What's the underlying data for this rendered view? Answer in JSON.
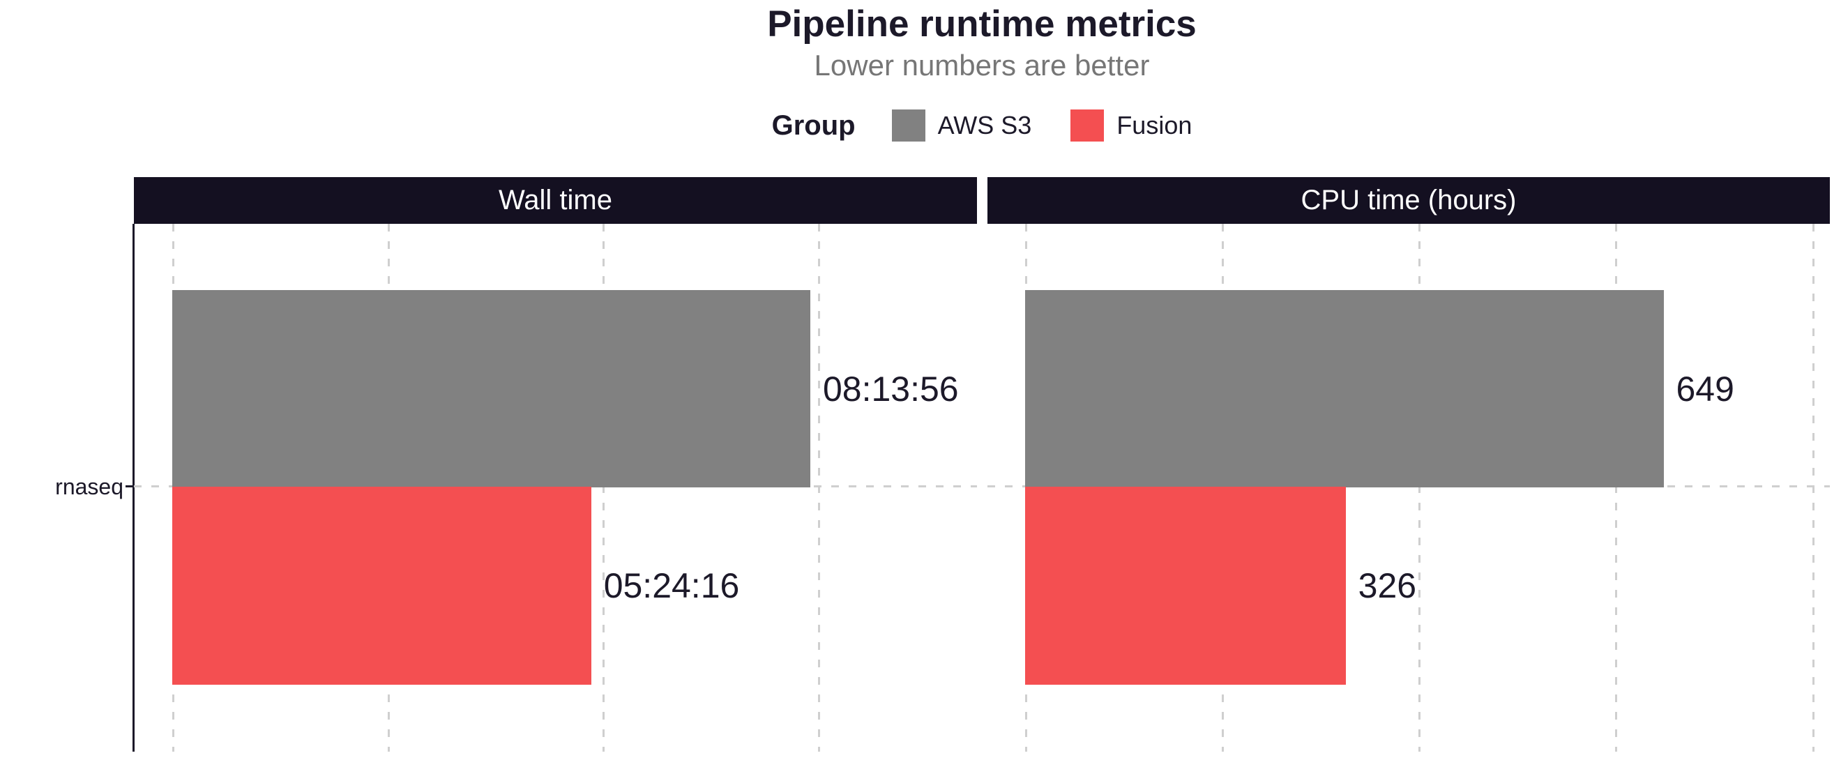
{
  "colors": {
    "background": "#ffffff",
    "strip_background": "#141021",
    "dark_text": "#1c1929",
    "subtitle_text": "#767676",
    "gridline": "#cfcfcf",
    "aws_s3": "#818181",
    "fusion": "#f44f51"
  },
  "legend": {
    "title": "Group",
    "items": [
      {
        "label": "AWS S3",
        "color": "#818181"
      },
      {
        "label": "Fusion",
        "color": "#f44f51"
      }
    ]
  },
  "chart_data": {
    "type": "bar",
    "orientation": "horizontal",
    "title": "Pipeline runtime metrics",
    "subtitle": "Lower numbers are better",
    "legend_title": "Group",
    "legend_position": "top",
    "grid": "dashed vertical gridlines, dashed category line",
    "categories": [
      "rnaseq"
    ],
    "facets": [
      {
        "label": "Wall time",
        "axis": {
          "min": -1782,
          "max": 37378,
          "gridlines": [
            0,
            10000,
            20000,
            30000
          ],
          "unit": "seconds"
        },
        "series": [
          {
            "name": "AWS S3",
            "value": 29636,
            "display": "08:13:56",
            "color": "#818181"
          },
          {
            "name": "Fusion",
            "value": 19456,
            "display": "05:24:16",
            "color": "#f44f51"
          }
        ]
      },
      {
        "label": "CPU time (hours)",
        "axis": {
          "min": -38,
          "max": 818,
          "gridlines": [
            0,
            200,
            400,
            600,
            800
          ],
          "unit": "hours"
        },
        "series": [
          {
            "name": "AWS S3",
            "value": 649,
            "display": "649",
            "color": "#818181"
          },
          {
            "name": "Fusion",
            "value": 326,
            "display": "326",
            "color": "#f44f51"
          }
        ]
      }
    ]
  }
}
